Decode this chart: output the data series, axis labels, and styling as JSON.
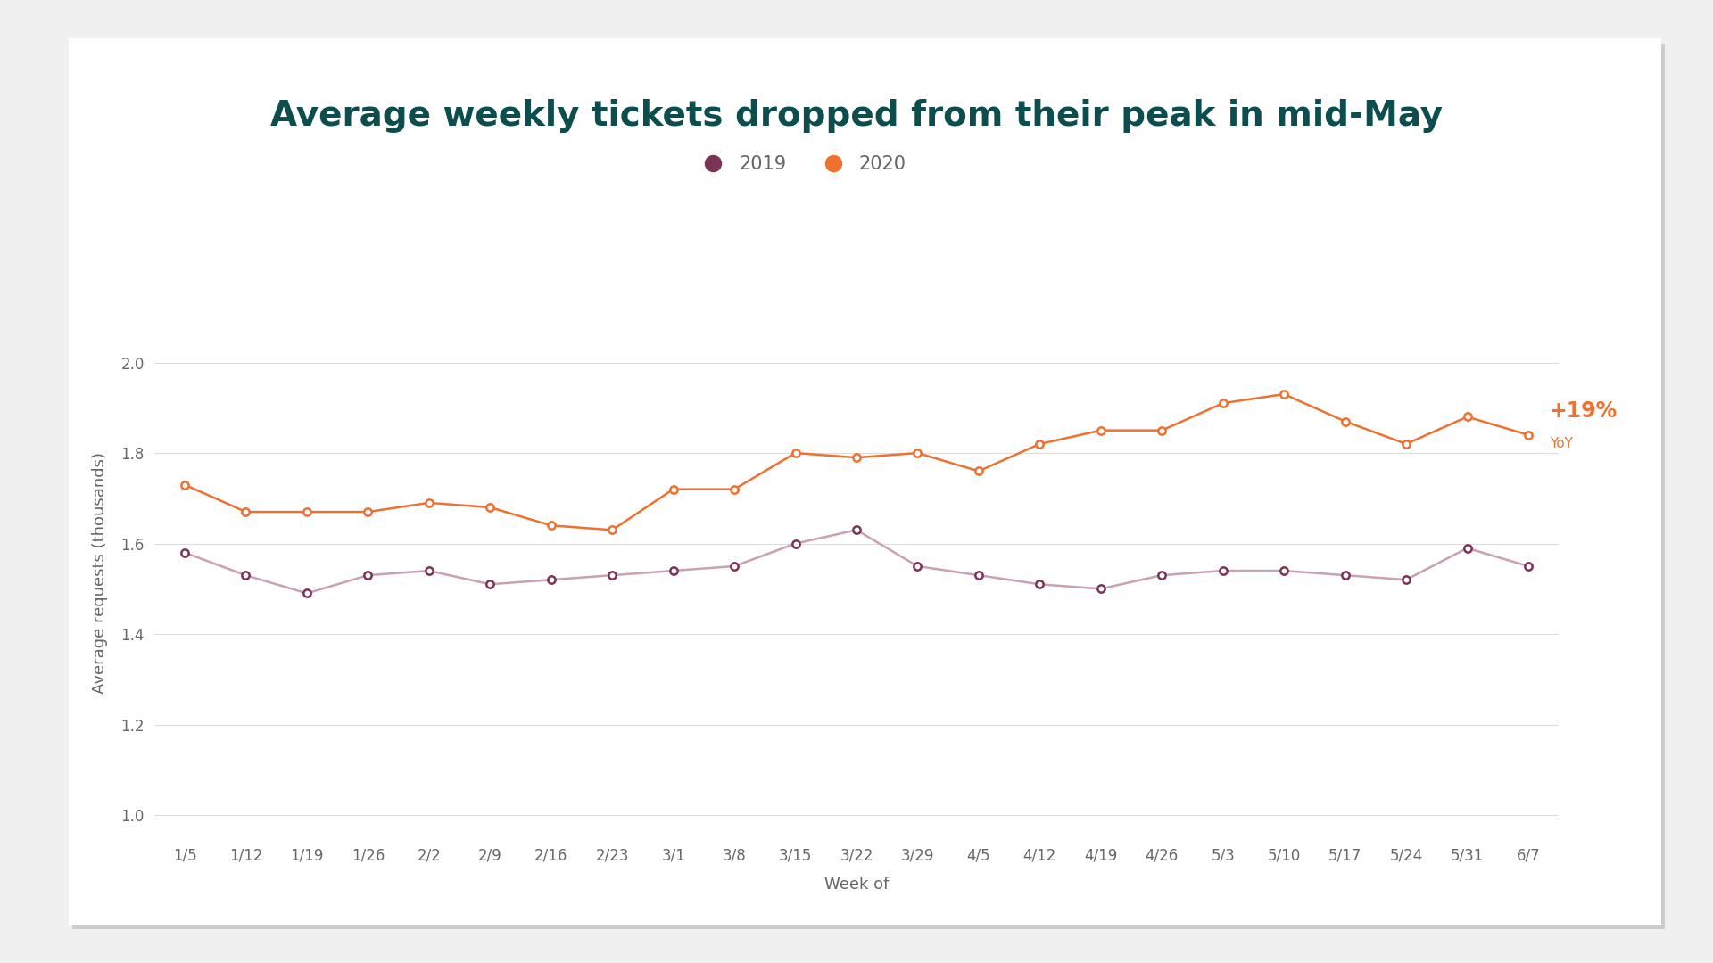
{
  "title": "Average weekly tickets dropped from their peak in mid-May",
  "xlabel": "Week of",
  "ylabel": "Average requests (thousands)",
  "background_color": "#f0f0f0",
  "chart_bg": "#ffffff",
  "title_color": "#0d4d4d",
  "axis_label_color": "#666666",
  "tick_color": "#666666",
  "grid_color": "#dddddd",
  "weeks": [
    "1/5",
    "1/12",
    "1/19",
    "1/26",
    "2/2",
    "2/9",
    "2/16",
    "2/23",
    "3/1",
    "3/8",
    "3/15",
    "3/22",
    "3/29",
    "4/5",
    "4/12",
    "4/19",
    "4/26",
    "5/3",
    "5/10",
    "5/17",
    "5/24",
    "5/31",
    "6/7"
  ],
  "data_2019": [
    1.58,
    1.53,
    1.49,
    1.53,
    1.54,
    1.51,
    1.52,
    1.53,
    1.54,
    1.55,
    1.6,
    1.63,
    1.55,
    1.53,
    1.51,
    1.5,
    1.53,
    1.54,
    1.54,
    1.53,
    1.52,
    1.59,
    1.55
  ],
  "data_2020": [
    1.73,
    1.67,
    1.67,
    1.67,
    1.69,
    1.68,
    1.64,
    1.63,
    1.72,
    1.72,
    1.8,
    1.79,
    1.8,
    1.76,
    1.82,
    1.85,
    1.85,
    1.91,
    1.93,
    1.87,
    1.82,
    1.88,
    1.84
  ],
  "color_2019": "#7b3358",
  "color_2020": "#f07030",
  "line_color_2019": "#c9a0b4",
  "line_color_2020": "#f07030",
  "marker_size": 6,
  "line_width": 1.8,
  "ylim": [
    0.95,
    2.12
  ],
  "yticks": [
    1.0,
    1.2,
    1.4,
    1.6,
    1.8,
    2.0
  ],
  "annotation_text_big": "+19%",
  "annotation_text_small": "YoY",
  "annotation_color": "#f07030",
  "title_fontsize": 28,
  "legend_fontsize": 15,
  "axis_label_fontsize": 13,
  "tick_fontsize": 12
}
